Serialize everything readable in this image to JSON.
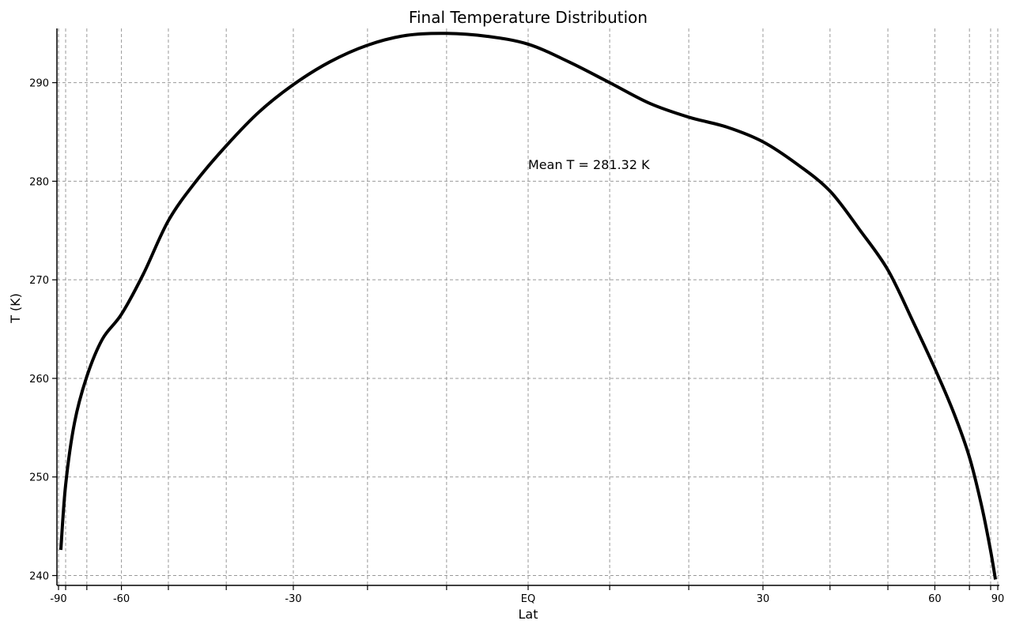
{
  "chart_data": {
    "type": "line",
    "title": "Final Temperature Distribution",
    "xlabel": "Lat",
    "ylabel": "T (K)",
    "annotation": "Mean T = 281.32 K",
    "x_scale": "sine-latitude",
    "xlim": [
      -90,
      90
    ],
    "ylim": [
      239,
      295.5
    ],
    "grid": true,
    "grid_style": "dashed",
    "line_color": "#000000",
    "grid_color": "#999999",
    "x_ticks": [
      {
        "value": -90,
        "label": "-90"
      },
      {
        "value": -60,
        "label": "-60"
      },
      {
        "value": -30,
        "label": "-30"
      },
      {
        "value": 0,
        "label": "EQ"
      },
      {
        "value": 30,
        "label": "30"
      },
      {
        "value": 60,
        "label": "60"
      },
      {
        "value": 90,
        "label": "90"
      }
    ],
    "x_minor_ticks": [
      -80,
      -70,
      -50,
      -40,
      -20,
      -10,
      10,
      20,
      40,
      50,
      70,
      80
    ],
    "y_ticks": [
      240,
      250,
      260,
      270,
      280,
      290
    ],
    "series": [
      {
        "x": [
          -84.3,
          -80,
          -75,
          -70,
          -65,
          -60,
          -55,
          -50,
          -45,
          -40,
          -35,
          -30,
          -25,
          -20,
          -15,
          -10,
          -5,
          0,
          5,
          10,
          15,
          20,
          25,
          30,
          35,
          40,
          45,
          50,
          55,
          60,
          65,
          70,
          75,
          80,
          84.3
        ],
        "values": [
          242.6,
          249.2,
          255.5,
          260.2,
          264.0,
          266.5,
          270.6,
          276.0,
          280.0,
          283.6,
          287.0,
          289.8,
          292.1,
          293.8,
          294.8,
          295.0,
          294.7,
          293.9,
          292.1,
          290.0,
          287.9,
          286.5,
          285.5,
          284.0,
          281.7,
          279.0,
          275.0,
          271.0,
          265.8,
          261.0,
          256.5,
          252.0,
          247.0,
          242.5,
          239.6
        ]
      }
    ]
  }
}
